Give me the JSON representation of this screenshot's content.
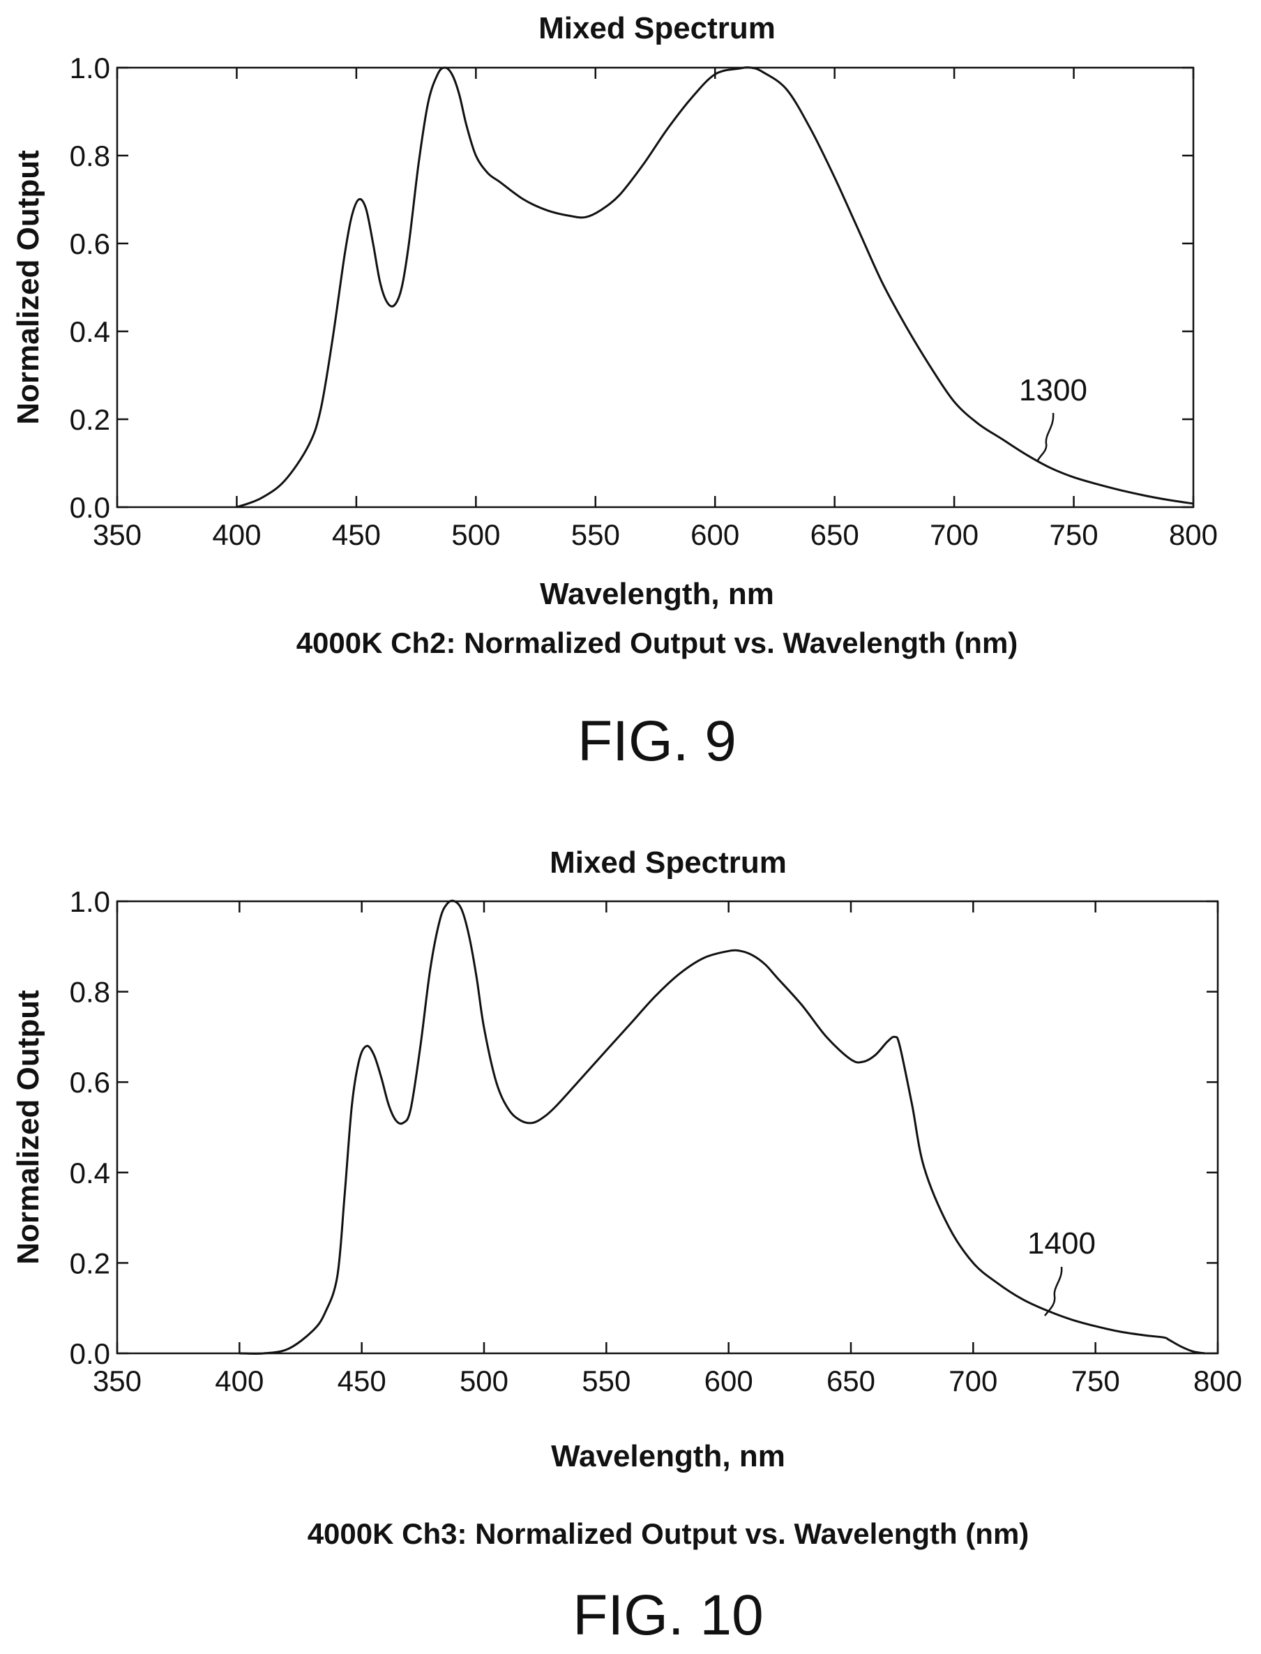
{
  "figures": [
    {
      "fig_label": "FIG. 9",
      "caption": "4000K Ch2: Normalized Output vs. Wavelength (nm)",
      "annotation": "1300",
      "chart_data": {
        "type": "line",
        "title": "Mixed Spectrum",
        "xlabel": "Wavelength, nm",
        "ylabel": "Normalized Output",
        "xlim": [
          350,
          800
        ],
        "ylim": [
          0,
          1.0
        ],
        "xticks": [
          "350",
          "400",
          "450",
          "500",
          "550",
          "600",
          "650",
          "700",
          "750",
          "800"
        ],
        "yticks": [
          "0.0",
          "0.2",
          "0.4",
          "0.6",
          "0.8",
          "1.0"
        ],
        "series": [
          {
            "x": [
              400,
              410,
              420,
              430,
              435,
              440,
              445,
              448,
              451,
              454,
              457,
              460,
              463,
              466,
              469,
              472,
              476,
              480,
              484,
              487,
              490,
              493,
              496,
              500,
              505,
              510,
              520,
              530,
              540,
              546,
              552,
              560,
              570,
              580,
              590,
              600,
              610,
              615,
              620,
              630,
              640,
              650,
              660,
              670,
              680,
              690,
              700,
              710,
              720,
              730,
              740,
              750,
              760,
              770,
              780,
              790,
              800
            ],
            "y": [
              0.0,
              0.02,
              0.06,
              0.14,
              0.22,
              0.38,
              0.57,
              0.66,
              0.7,
              0.68,
              0.6,
              0.51,
              0.465,
              0.46,
              0.5,
              0.6,
              0.78,
              0.92,
              0.985,
              1.0,
              0.985,
              0.94,
              0.87,
              0.8,
              0.76,
              0.74,
              0.7,
              0.675,
              0.662,
              0.66,
              0.675,
              0.71,
              0.78,
              0.86,
              0.93,
              0.985,
              0.998,
              1.0,
              0.99,
              0.95,
              0.86,
              0.75,
              0.63,
              0.51,
              0.41,
              0.32,
              0.24,
              0.19,
              0.155,
              0.12,
              0.09,
              0.068,
              0.052,
              0.038,
              0.026,
              0.016,
              0.008
            ]
          }
        ]
      }
    },
    {
      "fig_label": "FIG. 10",
      "caption": "4000K Ch3: Normalized Output vs. Wavelength (nm)",
      "annotation": "1400",
      "chart_data": {
        "type": "line",
        "title": "Mixed Spectrum",
        "xlabel": "Wavelength, nm",
        "ylabel": "Normalized Output",
        "xlim": [
          350,
          800
        ],
        "ylim": [
          0,
          1.0
        ],
        "xticks": [
          "350",
          "400",
          "450",
          "500",
          "550",
          "600",
          "650",
          "700",
          "750",
          "800"
        ],
        "yticks": [
          "0.0",
          "0.2",
          "0.4",
          "0.6",
          "0.8",
          "1.0"
        ],
        "series": [
          {
            "x": [
              400,
              410,
              420,
              430,
              435,
              440,
              443,
              446,
              449,
              452,
              455,
              458,
              461,
              464,
              467,
              470,
              474,
              478,
              482,
              485,
              488,
              491,
              494,
              497,
              500,
              505,
              510,
              515,
              520,
              525,
              530,
              540,
              550,
              560,
              570,
              580,
              590,
              600,
              605,
              610,
              615,
              620,
              630,
              640,
              650,
              655,
              660,
              665,
              668,
              670,
              675,
              680,
              690,
              700,
              710,
              720,
              730,
              740,
              750,
              760,
              770,
              778,
              780,
              785,
              790,
              795
            ],
            "y": [
              0.0,
              0.0,
              0.01,
              0.05,
              0.09,
              0.17,
              0.35,
              0.55,
              0.65,
              0.68,
              0.66,
              0.61,
              0.55,
              0.515,
              0.51,
              0.54,
              0.68,
              0.85,
              0.96,
              0.995,
              1.0,
              0.98,
              0.92,
              0.83,
              0.72,
              0.6,
              0.54,
              0.515,
              0.51,
              0.525,
              0.55,
              0.61,
              0.67,
              0.73,
              0.79,
              0.84,
              0.875,
              0.89,
              0.89,
              0.88,
              0.86,
              0.83,
              0.77,
              0.7,
              0.65,
              0.645,
              0.66,
              0.69,
              0.7,
              0.68,
              0.55,
              0.41,
              0.28,
              0.2,
              0.155,
              0.12,
              0.095,
              0.075,
              0.06,
              0.048,
              0.04,
              0.035,
              0.03,
              0.015,
              0.004,
              0.0
            ]
          }
        ]
      }
    }
  ]
}
